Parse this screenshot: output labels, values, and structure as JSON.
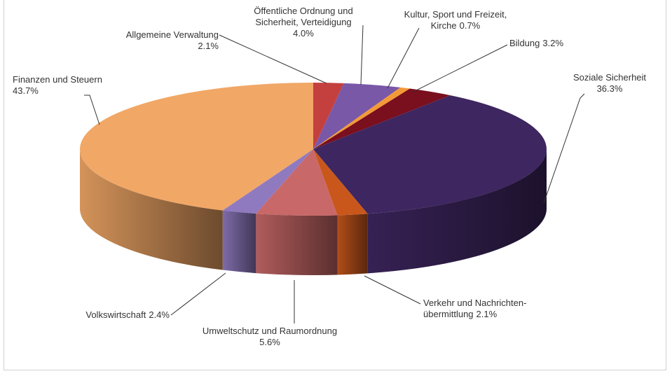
{
  "chart_data": {
    "type": "pie",
    "categories": [
      "Allgemeine Verwaltung",
      "Öffentliche Ordnung und Sicherheit, Verteidigung",
      "Kultur, Sport und Freizeit, Kirche",
      "Bildung",
      "Soziale Sicherheit",
      "Verkehr und Nachrichten-übermittlung",
      "Umweltschutz und Raumordnung",
      "Volkswirtschaft",
      "Finanzen und Steuern"
    ],
    "values": [
      2.1,
      4.0,
      0.7,
      3.2,
      36.3,
      2.1,
      5.6,
      2.4,
      43.7
    ],
    "value_labels": [
      "2.1%",
      "4.0%",
      "0.7%",
      "3.2%",
      "36.3%",
      "2.1%",
      "5.6%",
      "2.4%",
      "43.7%"
    ],
    "colors": [
      "#c4403e",
      "#7a58a8",
      "#f39a38",
      "#7a0f1e",
      "#3e2660",
      "#c9571c",
      "#c96868",
      "#8f7abf",
      "#f1a766"
    ]
  }
}
